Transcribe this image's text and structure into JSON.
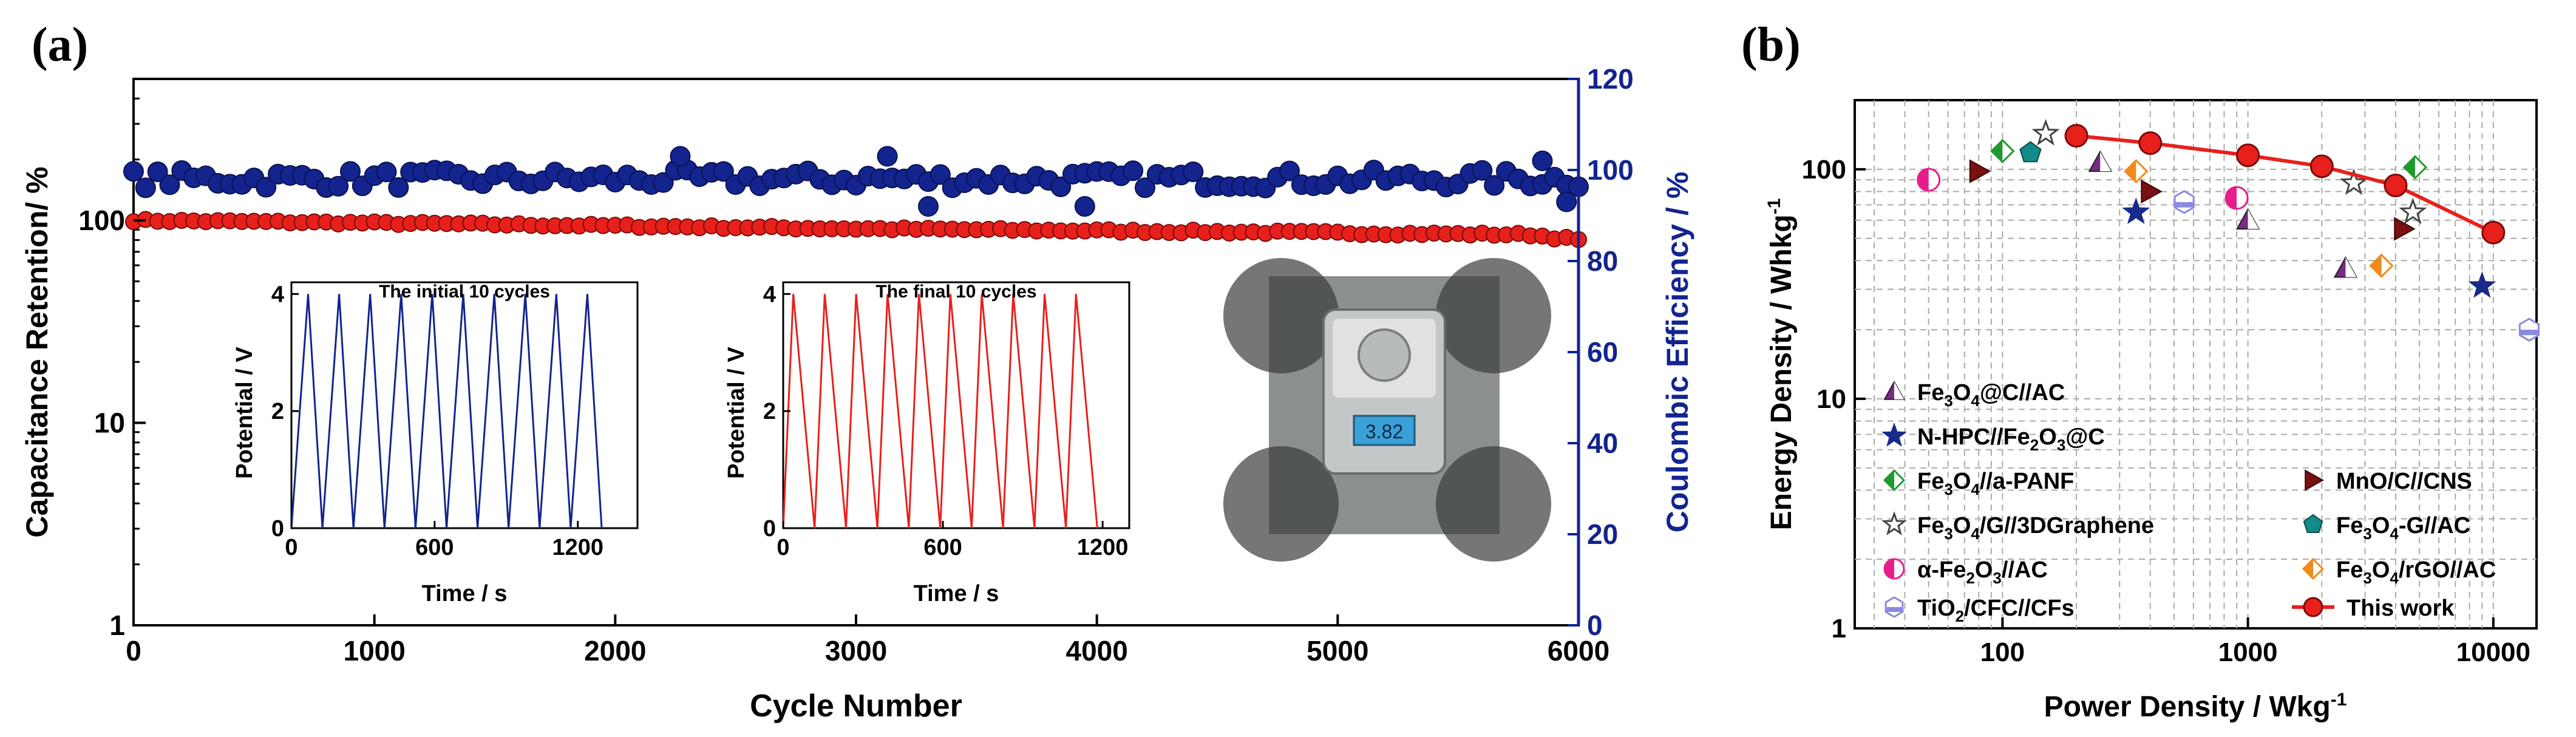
{
  "panel_a": {
    "label": "(a)",
    "xlabel": "Cycle Number",
    "ylabel_left": "Capacitance Retention/ %",
    "ylabel_right": "Coulombic Efficiency / %",
    "inset_initial_title": "The initial 10 cycles",
    "inset_final_title": "The final 10 cycles",
    "inset_ylabel": "Potential / V",
    "inset_xlabel": "Time / s",
    "scale_reading": "3.82"
  },
  "panel_b": {
    "label": "(b)",
    "xlabel": "Power Density / Wkg",
    "xlabel_sup": "-1",
    "ylabel": "Energy Density / Whkg",
    "ylabel_sup": "-1"
  },
  "chart_data": [
    {
      "id": "cycling",
      "type": "scatter",
      "title": "",
      "xlabel": "Cycle Number",
      "ylabel": "Capacitance Retention/ %",
      "y2label": "Coulombic Efficiency / %",
      "xlim": [
        0,
        6000
      ],
      "ylim": [
        1,
        500
      ],
      "yscale": "log",
      "y2lim": [
        0,
        120
      ],
      "xticks": [
        0,
        1000,
        2000,
        3000,
        4000,
        5000,
        6000
      ],
      "yticks": [
        1,
        10,
        100
      ],
      "y2ticks": [
        0,
        20,
        40,
        60,
        80,
        100,
        120
      ],
      "series": [
        {
          "name": "Capacitance Retention",
          "axis": "left",
          "color": "#e8201c",
          "x_step": 50,
          "trend": [
            [
              0,
              100
            ],
            [
              3000,
              91
            ],
            [
              5800,
              85
            ],
            [
              6000,
              80
            ]
          ],
          "noise": 3
        },
        {
          "name": "Coulombic Efficiency",
          "axis": "right",
          "color": "#13248f",
          "x_step": 50,
          "trend": [
            [
              0,
              98
            ],
            [
              6000,
              98
            ]
          ],
          "noise": 4,
          "outliers": [
            [
              2270,
              103
            ],
            [
              3130,
              103
            ],
            [
              3300,
              92
            ],
            [
              3950,
              92
            ],
            [
              5850,
              102
            ],
            [
              5950,
              93
            ]
          ]
        }
      ]
    },
    {
      "id": "inset_initial",
      "type": "line",
      "title": "The initial 10 cycles",
      "xlabel": "Time / s",
      "ylabel": "Potential / V",
      "xlim": [
        0,
        1450
      ],
      "ylim": [
        0,
        4.2
      ],
      "xticks": [
        0,
        600,
        1200
      ],
      "yticks": [
        0,
        2,
        4
      ],
      "color": "#13248f",
      "cycles": 10,
      "period": 130,
      "charge_time": 70,
      "vmax": 4.0
    },
    {
      "id": "inset_final",
      "type": "line",
      "title": "The final 10 cycles",
      "xlabel": "Time / s",
      "ylabel": "Potential / V",
      "xlim": [
        0,
        1300
      ],
      "ylim": [
        0,
        4.2
      ],
      "xticks": [
        0,
        600,
        1200
      ],
      "yticks": [
        0,
        2,
        4
      ],
      "color": "#e8201c",
      "cycles": 10,
      "period": 118,
      "charge_time": 38,
      "vmax": 4.0
    },
    {
      "id": "ragone",
      "type": "scatter",
      "title": "",
      "xlabel": "Power Density / Wkg-1",
      "ylabel": "Energy Density / Whkg-1",
      "xscale": "log",
      "yscale": "log",
      "xlim": [
        25,
        15000
      ],
      "ylim": [
        1,
        200
      ],
      "xticks": [
        100,
        1000,
        10000
      ],
      "yticks": [
        1,
        10,
        100
      ],
      "series": [
        {
          "name": "Fe₃O₄@C//AC",
          "legend_sub": [
            "Fe",
            "3",
            "O",
            "4",
            "@C//AC"
          ],
          "marker": "triangle",
          "color": "#7a2a86",
          "points": [
            [
              250,
              107
            ],
            [
              1000,
              60
            ],
            [
              2500,
              37
            ]
          ]
        },
        {
          "name": "N-HPC//Fe₂O₃@C",
          "legend_sub": [
            "N-HPC//Fe",
            "2",
            "O",
            "3",
            "@C"
          ],
          "marker": "star",
          "color": "#1a2a8a",
          "points": [
            [
              350,
              65
            ],
            [
              9000,
              31
            ]
          ]
        },
        {
          "name": "Fe₃O₄//a-PANF",
          "legend_sub": [
            "Fe",
            "3",
            "O",
            "4",
            "//a-PANF"
          ],
          "marker": "diamond",
          "color": "#1f9a2e",
          "points": [
            [
              100,
              120
            ],
            [
              4800,
              102
            ]
          ]
        },
        {
          "name": "Fe₃O₄/G//3DGraphene",
          "legend_sub": [
            "Fe",
            "3",
            "O",
            "4",
            "/G//3DGraphene"
          ],
          "marker": "star-open",
          "color": "#555555",
          "points": [
            [
              150,
              143
            ],
            [
              2700,
              87
            ],
            [
              4700,
              65
            ]
          ]
        },
        {
          "name": "α-Fe₂O₃//AC",
          "legend_sub": [
            "α-Fe",
            "2",
            "O",
            "3",
            "//AC"
          ],
          "marker": "circle",
          "color": "#e81d8c",
          "points": [
            [
              50,
              90
            ],
            [
              900,
              75
            ]
          ]
        },
        {
          "name": "TiO₂/CFC//CFs",
          "legend_sub": [
            "TiO",
            "2",
            "/CFC//CFs",
            "",
            ""
          ],
          "marker": "hexagon",
          "color": "#8a8ae0",
          "points": [
            [
              550,
              72
            ],
            [
              14000,
              20
            ]
          ]
        },
        {
          "name": "MnO/C//CNS",
          "legend_sub": [
            "MnO/C//CNS",
            "",
            "",
            "",
            ""
          ],
          "marker": "triangle-right",
          "color": "#7a1010",
          "points": [
            [
              80,
              98
            ],
            [
              400,
              80
            ],
            [
              4300,
              55
            ]
          ]
        },
        {
          "name": "Fe₃O₄-G//AC",
          "legend_sub": [
            "Fe",
            "3",
            "O",
            "4",
            "-G//AC"
          ],
          "marker": "pentagon",
          "color": "#138a8a",
          "points": [
            [
              130,
              118
            ]
          ]
        },
        {
          "name": "Fe₃O₄/rGO//AC",
          "legend_sub": [
            "Fe",
            "3",
            "O",
            "4",
            "/rGO//AC"
          ],
          "marker": "diamond-orange",
          "color": "#f08a1a",
          "points": [
            [
              350,
              98
            ],
            [
              3500,
              38
            ]
          ]
        },
        {
          "name": "This work",
          "legend_sub": [
            "This work",
            "",
            "",
            "",
            ""
          ],
          "marker": "line-circle",
          "color": "#e8201c",
          "points": [
            [
              200,
              140
            ],
            [
              400,
              130
            ],
            [
              1000,
              115
            ],
            [
              2000,
              103
            ],
            [
              4000,
              85
            ],
            [
              10000,
              53
            ]
          ]
        }
      ]
    }
  ]
}
